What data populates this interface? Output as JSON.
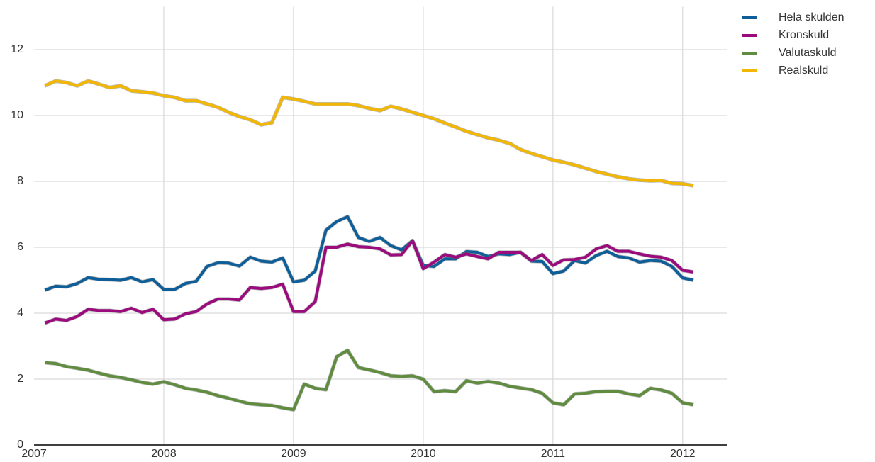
{
  "chart_data": {
    "type": "line",
    "x": [
      2007.083,
      2007.167,
      2007.25,
      2007.333,
      2007.417,
      2007.5,
      2007.583,
      2007.667,
      2007.75,
      2007.833,
      2007.917,
      2008.0,
      2008.083,
      2008.167,
      2008.25,
      2008.333,
      2008.417,
      2008.5,
      2008.583,
      2008.667,
      2008.75,
      2008.833,
      2008.917,
      2009.0,
      2009.083,
      2009.167,
      2009.25,
      2009.333,
      2009.417,
      2009.5,
      2009.583,
      2009.667,
      2009.75,
      2009.833,
      2009.917,
      2010.0,
      2010.083,
      2010.167,
      2010.25,
      2010.333,
      2010.417,
      2010.5,
      2010.583,
      2010.667,
      2010.75,
      2010.833,
      2010.917,
      2011.0,
      2011.083,
      2011.167,
      2011.25,
      2011.333,
      2011.417,
      2011.5,
      2011.583,
      2011.667,
      2011.75,
      2011.833,
      2011.917,
      2012.0,
      2012.083
    ],
    "series": [
      {
        "name": "Hela skulden",
        "color": "#0d5e99",
        "values": [
          4.7,
          4.82,
          4.8,
          4.9,
          5.08,
          5.03,
          5.02,
          5.0,
          5.08,
          4.95,
          5.02,
          4.72,
          4.72,
          4.9,
          4.97,
          5.42,
          5.53,
          5.52,
          5.43,
          5.7,
          5.58,
          5.55,
          5.68,
          4.95,
          5.0,
          5.28,
          6.52,
          6.78,
          6.93,
          6.3,
          6.18,
          6.3,
          6.05,
          5.92,
          6.2,
          5.45,
          5.42,
          5.65,
          5.65,
          5.87,
          5.85,
          5.72,
          5.8,
          5.78,
          5.85,
          5.58,
          5.57,
          5.2,
          5.28,
          5.6,
          5.52,
          5.75,
          5.88,
          5.72,
          5.68,
          5.55,
          5.6,
          5.58,
          5.42,
          5.07,
          5.0
        ]
      },
      {
        "name": "Kronskuld",
        "color": "#9c0b7e",
        "values": [
          3.7,
          3.82,
          3.78,
          3.9,
          4.12,
          4.08,
          4.08,
          4.05,
          4.15,
          4.02,
          4.12,
          3.8,
          3.82,
          3.98,
          4.05,
          4.28,
          4.43,
          4.43,
          4.4,
          4.78,
          4.75,
          4.78,
          4.88,
          4.05,
          4.05,
          4.35,
          6.0,
          6.0,
          6.1,
          6.02,
          6.0,
          5.95,
          5.77,
          5.78,
          6.2,
          5.35,
          5.55,
          5.78,
          5.7,
          5.8,
          5.72,
          5.65,
          5.85,
          5.85,
          5.85,
          5.6,
          5.78,
          5.45,
          5.62,
          5.63,
          5.7,
          5.95,
          6.05,
          5.88,
          5.88,
          5.8,
          5.73,
          5.7,
          5.6,
          5.3,
          5.25
        ]
      },
      {
        "name": "Valutaskuld",
        "color": "#5f8c3e",
        "values": [
          2.5,
          2.47,
          2.38,
          2.33,
          2.27,
          2.18,
          2.1,
          2.05,
          1.98,
          1.9,
          1.85,
          1.92,
          1.83,
          1.72,
          1.67,
          1.6,
          1.5,
          1.42,
          1.33,
          1.25,
          1.22,
          1.2,
          1.13,
          1.07,
          1.85,
          1.72,
          1.68,
          2.68,
          2.87,
          2.35,
          2.28,
          2.2,
          2.1,
          2.08,
          2.1,
          2.0,
          1.62,
          1.65,
          1.62,
          1.95,
          1.88,
          1.93,
          1.88,
          1.78,
          1.73,
          1.68,
          1.57,
          1.28,
          1.22,
          1.55,
          1.57,
          1.62,
          1.63,
          1.63,
          1.55,
          1.5,
          1.72,
          1.67,
          1.57,
          1.28,
          1.22
        ]
      },
      {
        "name": "Realskuld",
        "color": "#f2b705",
        "values": [
          10.9,
          11.05,
          11.0,
          10.9,
          11.05,
          10.95,
          10.85,
          10.9,
          10.75,
          10.72,
          10.68,
          10.6,
          10.55,
          10.45,
          10.45,
          10.35,
          10.25,
          10.1,
          9.97,
          9.87,
          9.72,
          9.78,
          10.55,
          10.5,
          10.43,
          10.35,
          10.35,
          10.35,
          10.35,
          10.3,
          10.22,
          10.15,
          10.28,
          10.2,
          10.1,
          10.0,
          9.9,
          9.77,
          9.65,
          9.52,
          9.42,
          9.32,
          9.25,
          9.15,
          8.97,
          8.85,
          8.75,
          8.65,
          8.58,
          8.5,
          8.4,
          8.3,
          8.22,
          8.14,
          8.08,
          8.04,
          8.02,
          8.03,
          7.94,
          7.93,
          7.87
        ]
      }
    ],
    "xlim": [
      2007,
      2012.34
    ],
    "xticks": [
      2007,
      2008,
      2009,
      2010,
      2011,
      2012
    ],
    "ylim": [
      0,
      13.3
    ],
    "yticks": [
      0,
      2,
      4,
      6,
      8,
      10,
      12
    ],
    "grid": true,
    "legend": "right"
  }
}
